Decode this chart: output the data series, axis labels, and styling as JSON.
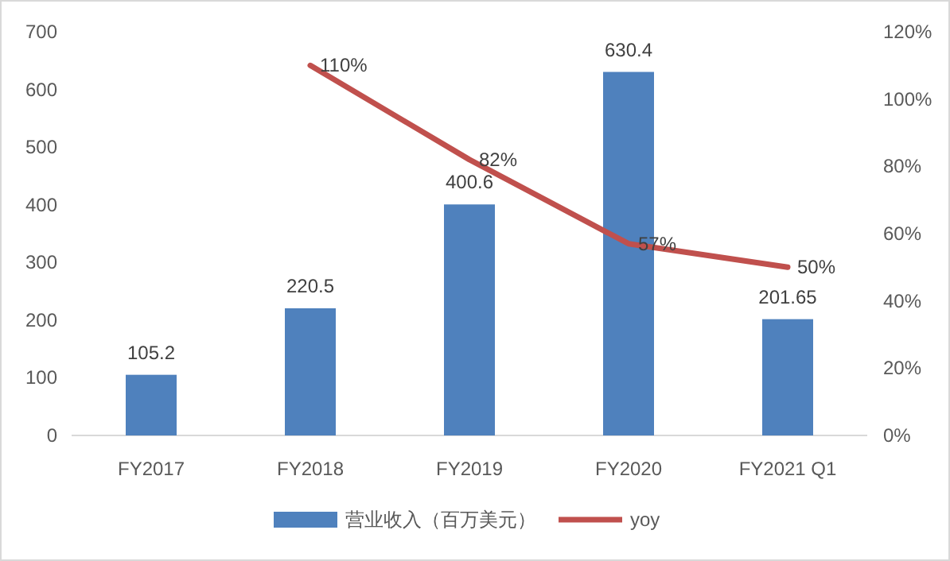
{
  "chart_data": {
    "type": "bar",
    "categories": [
      "FY2017",
      "FY2018",
      "FY2019",
      "FY2020",
      "FY2021 Q1"
    ],
    "series": [
      {
        "name": "营业收入（百万美元）",
        "color": "#4f81bd",
        "values": [
          105.2,
          220.5,
          400.6,
          630.4,
          201.65
        ],
        "value_labels": [
          "105.2",
          "220.5",
          "400.6",
          "630.4",
          "201.65"
        ]
      },
      {
        "name": "yoy",
        "type": "line",
        "axis": "y2",
        "color": "#c0504d",
        "values": [
          null,
          110,
          82,
          57,
          50
        ],
        "value_labels": [
          null,
          "110%",
          "82%",
          "57%",
          "50%"
        ]
      }
    ],
    "ylim": [
      0,
      700
    ],
    "yticks": [
      0,
      100,
      200,
      300,
      400,
      500,
      600,
      700
    ],
    "y2lim": [
      0,
      120
    ],
    "y2ticks": [
      {
        "value": 0,
        "label": "0%"
      },
      {
        "value": 20,
        "label": "20%"
      },
      {
        "value": 40,
        "label": "40%"
      },
      {
        "value": 60,
        "label": "60%"
      },
      {
        "value": 80,
        "label": "80%"
      },
      {
        "value": 100,
        "label": "100%"
      },
      {
        "value": 120,
        "label": "120%"
      }
    ],
    "legend": "bottom",
    "grid": false,
    "marker": "none",
    "line_style": "solid"
  }
}
